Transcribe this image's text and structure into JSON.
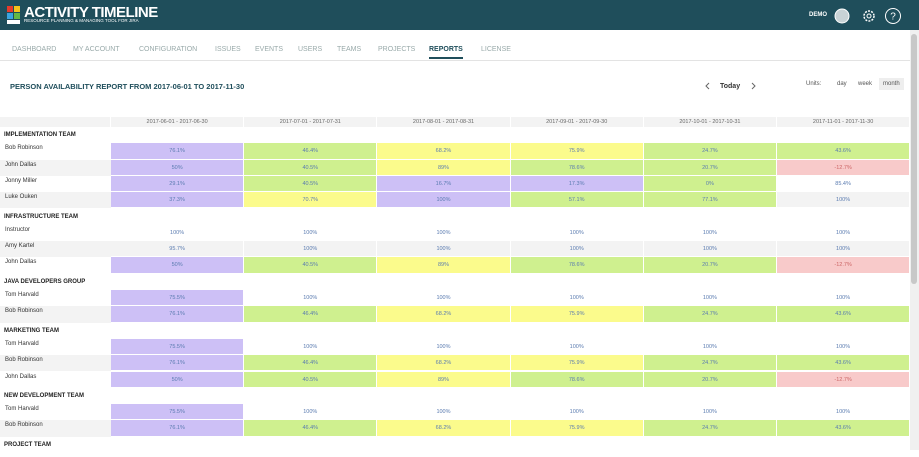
{
  "header": {
    "logo_title": "ACTIVITY TIMELINE",
    "logo_subtitle": "RESOURCE PLANNING & MANAGING TOOL FOR JIRA",
    "user": "DEMO"
  },
  "nav": {
    "items": [
      "DASHBOARD",
      "MY ACCOUNT",
      "CONFIGURATION",
      "ISSUES",
      "EVENTS",
      "USERS",
      "TEAMS",
      "PROJECTS",
      "REPORTS",
      "LICENSE"
    ],
    "active": 8
  },
  "report": {
    "title": "PERSON AVAILABILITY REPORT FROM 2017-06-01 TO 2017-11-30",
    "today": "Today",
    "units_label": "Units:",
    "units": [
      "day",
      "week",
      "month"
    ],
    "active_unit": 2
  },
  "table": {
    "columns": [
      "2017-06-01 - 2017-06-30",
      "2017-07-01 - 2017-07-31",
      "2017-08-01 - 2017-08-31",
      "2017-09-01 - 2017-09-30",
      "2017-10-01 - 2017-10-31",
      "2017-11-01 - 2017-11-30"
    ],
    "groups": [
      {
        "team": "IMPLEMENTATION TEAM",
        "rows": [
          {
            "name": "Bob Robinson",
            "values": [
              "76.1%",
              "46.4%",
              "68.2%",
              "75.9%",
              "24.7%",
              "43.6%"
            ],
            "colors": [
              "#cdc0f6",
              "#cff08f",
              "#fbfb8c",
              "#fbfb8c",
              "#cff08f",
              "#cff08f"
            ]
          },
          {
            "name": "John Dallas",
            "values": [
              "50%",
              "40.5%",
              "89%",
              "78.6%",
              "20.7%",
              "-12.7%"
            ],
            "colors": [
              "#cdc0f6",
              "#cff08f",
              "#fbfb8c",
              "#cff08f",
              "#cff08f",
              "#f8caca"
            ]
          },
          {
            "name": "Jonny Miller",
            "values": [
              "29.1%",
              "40.5%",
              "16.7%",
              "17.3%",
              "0%",
              "85.4%"
            ],
            "colors": [
              "#cdc0f6",
              "#cff08f",
              "#cdc0f6",
              "#cdc0f6",
              "#cff08f",
              "#ffffff"
            ]
          },
          {
            "name": "Luke Ouken",
            "values": [
              "37.3%",
              "70.7%",
              "100%",
              "57.1%",
              "77.1%",
              "100%"
            ],
            "colors": [
              "#cdc0f6",
              "#fbfb8c",
              "#cdc0f6",
              "#cff08f",
              "#cff08f",
              "#ffffff"
            ]
          }
        ]
      },
      {
        "team": "INFRASTRUCTURE TEAM",
        "rows": [
          {
            "name": "Instructor",
            "values": [
              "100%",
              "100%",
              "100%",
              "100%",
              "100%",
              "100%"
            ],
            "colors": [
              "#ffffff",
              "#ffffff",
              "#ffffff",
              "#ffffff",
              "#ffffff",
              "#ffffff"
            ]
          },
          {
            "name": "Amy Kartel",
            "values": [
              "95.7%",
              "100%",
              "100%",
              "100%",
              "100%",
              "100%"
            ],
            "colors": [
              "#ffffff",
              "#ffffff",
              "#ffffff",
              "#ffffff",
              "#ffffff",
              "#ffffff"
            ]
          },
          {
            "name": "John Dallas",
            "values": [
              "50%",
              "40.5%",
              "89%",
              "78.6%",
              "20.7%",
              "-12.7%"
            ],
            "colors": [
              "#cdc0f6",
              "#cff08f",
              "#fbfb8c",
              "#cff08f",
              "#cff08f",
              "#f8caca"
            ]
          }
        ]
      },
      {
        "team": "JAVA DEVELOPERS GROUP",
        "rows": [
          {
            "name": "Tom Harvald",
            "values": [
              "75.5%",
              "100%",
              "100%",
              "100%",
              "100%",
              "100%"
            ],
            "colors": [
              "#cdc0f6",
              "#ffffff",
              "#ffffff",
              "#ffffff",
              "#ffffff",
              "#ffffff"
            ]
          },
          {
            "name": "Bob Robinson",
            "values": [
              "76.1%",
              "46.4%",
              "68.2%",
              "75.9%",
              "24.7%",
              "43.6%"
            ],
            "colors": [
              "#cdc0f6",
              "#cff08f",
              "#fbfb8c",
              "#fbfb8c",
              "#cff08f",
              "#cff08f"
            ]
          }
        ]
      },
      {
        "team": "MARKETING TEAM",
        "rows": [
          {
            "name": "Tom Harvald",
            "values": [
              "75.5%",
              "100%",
              "100%",
              "100%",
              "100%",
              "100%"
            ],
            "colors": [
              "#cdc0f6",
              "#ffffff",
              "#ffffff",
              "#ffffff",
              "#ffffff",
              "#ffffff"
            ]
          },
          {
            "name": "Bob Robinson",
            "values": [
              "76.1%",
              "46.4%",
              "68.2%",
              "75.9%",
              "24.7%",
              "43.6%"
            ],
            "colors": [
              "#cdc0f6",
              "#cff08f",
              "#fbfb8c",
              "#fbfb8c",
              "#cff08f",
              "#cff08f"
            ]
          },
          {
            "name": "John Dallas",
            "values": [
              "50%",
              "40.5%",
              "89%",
              "78.6%",
              "20.7%",
              "-12.7%"
            ],
            "colors": [
              "#cdc0f6",
              "#cff08f",
              "#fbfb8c",
              "#cff08f",
              "#cff08f",
              "#f8caca"
            ]
          }
        ]
      },
      {
        "team": "NEW DEVELOPMENT TEAM",
        "rows": [
          {
            "name": "Tom Harvald",
            "values": [
              "75.5%",
              "100%",
              "100%",
              "100%",
              "100%",
              "100%"
            ],
            "colors": [
              "#cdc0f6",
              "#ffffff",
              "#ffffff",
              "#ffffff",
              "#ffffff",
              "#ffffff"
            ]
          },
          {
            "name": "Bob Robinson",
            "values": [
              "76.1%",
              "46.4%",
              "68.2%",
              "75.9%",
              "24.7%",
              "43.6%"
            ],
            "colors": [
              "#cdc0f6",
              "#cff08f",
              "#fbfb8c",
              "#fbfb8c",
              "#cff08f",
              "#cff08f"
            ]
          }
        ]
      },
      {
        "team": "PROJECT TEAM",
        "rows": []
      }
    ]
  }
}
